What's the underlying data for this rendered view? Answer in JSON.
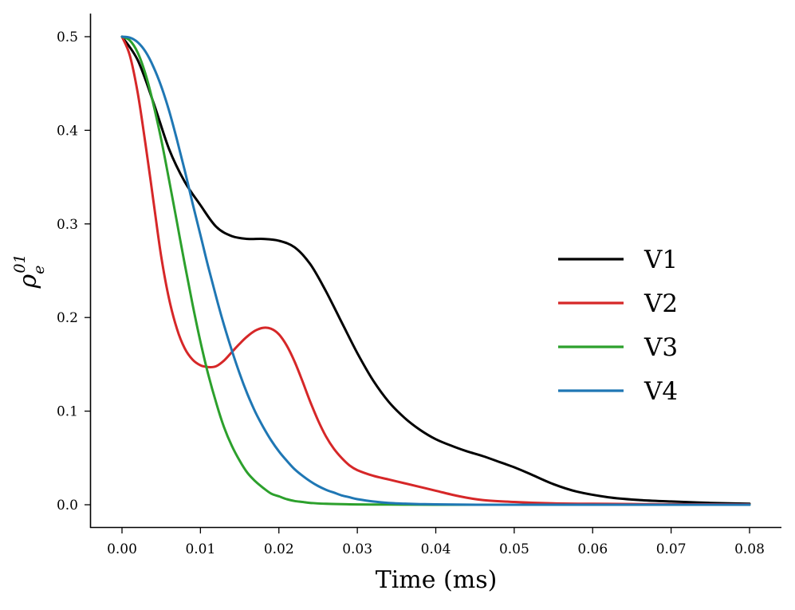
{
  "chart_data": {
    "type": "line",
    "title": "",
    "xlabel": "Time (ms)",
    "ylabel": {
      "base": "ρ",
      "sup": "01",
      "sub": "e"
    },
    "xlim": [
      -0.004,
      0.084
    ],
    "ylim": [
      -0.025,
      0.525
    ],
    "xticks": [
      "0.00",
      "0.01",
      "0.02",
      "0.03",
      "0.04",
      "0.05",
      "0.06",
      "0.07",
      "0.08"
    ],
    "xtick_values": [
      0.0,
      0.01,
      0.02,
      0.03,
      0.04,
      0.05,
      0.06,
      0.07,
      0.08
    ],
    "yticks": [
      "0.0",
      "0.1",
      "0.2",
      "0.3",
      "0.4",
      "0.5"
    ],
    "ytick_values": [
      0.0,
      0.1,
      0.2,
      0.3,
      0.4,
      0.5
    ],
    "grid": false,
    "legend_position": "center-right",
    "series": [
      {
        "name": "V1",
        "color": "#000000",
        "x": [
          0.0,
          0.002,
          0.004,
          0.006,
          0.008,
          0.01,
          0.012,
          0.014,
          0.016,
          0.018,
          0.02,
          0.022,
          0.024,
          0.026,
          0.028,
          0.03,
          0.032,
          0.034,
          0.036,
          0.038,
          0.04,
          0.042,
          0.044,
          0.046,
          0.048,
          0.05,
          0.052,
          0.055,
          0.058,
          0.062,
          0.066,
          0.07,
          0.075,
          0.08
        ],
        "y": [
          0.5,
          0.475,
          0.43,
          0.38,
          0.345,
          0.32,
          0.297,
          0.287,
          0.284,
          0.284,
          0.282,
          0.275,
          0.257,
          0.228,
          0.195,
          0.162,
          0.133,
          0.11,
          0.093,
          0.08,
          0.07,
          0.063,
          0.057,
          0.052,
          0.046,
          0.04,
          0.033,
          0.022,
          0.014,
          0.008,
          0.005,
          0.0035,
          0.002,
          0.001
        ]
      },
      {
        "name": "V2",
        "color": "#d62728",
        "x": [
          0.0,
          0.001,
          0.002,
          0.003,
          0.004,
          0.005,
          0.006,
          0.007,
          0.008,
          0.009,
          0.01,
          0.011,
          0.012,
          0.013,
          0.014,
          0.015,
          0.016,
          0.017,
          0.018,
          0.019,
          0.02,
          0.021,
          0.022,
          0.023,
          0.024,
          0.025,
          0.026,
          0.027,
          0.028,
          0.029,
          0.03,
          0.032,
          0.034,
          0.036,
          0.038,
          0.04,
          0.043,
          0.046,
          0.05,
          0.055,
          0.06,
          0.07,
          0.08
        ],
        "y": [
          0.5,
          0.48,
          0.44,
          0.385,
          0.325,
          0.265,
          0.22,
          0.188,
          0.167,
          0.155,
          0.149,
          0.147,
          0.148,
          0.154,
          0.163,
          0.172,
          0.18,
          0.186,
          0.189,
          0.188,
          0.182,
          0.17,
          0.153,
          0.132,
          0.11,
          0.09,
          0.073,
          0.06,
          0.05,
          0.042,
          0.037,
          0.031,
          0.027,
          0.023,
          0.019,
          0.015,
          0.009,
          0.005,
          0.003,
          0.0015,
          0.001,
          0.0005,
          0.0003
        ]
      },
      {
        "name": "V3",
        "color": "#2ca02c",
        "x": [
          0.0,
          0.001,
          0.002,
          0.003,
          0.004,
          0.005,
          0.006,
          0.007,
          0.008,
          0.009,
          0.01,
          0.011,
          0.012,
          0.013,
          0.014,
          0.015,
          0.016,
          0.017,
          0.018,
          0.019,
          0.02,
          0.021,
          0.022,
          0.023,
          0.024,
          0.026,
          0.028,
          0.03,
          0.033,
          0.036,
          0.04,
          0.05,
          0.06,
          0.08
        ],
        "y": [
          0.5,
          0.496,
          0.483,
          0.46,
          0.428,
          0.39,
          0.347,
          0.302,
          0.257,
          0.214,
          0.174,
          0.139,
          0.109,
          0.083,
          0.063,
          0.047,
          0.034,
          0.025,
          0.018,
          0.012,
          0.009,
          0.006,
          0.004,
          0.003,
          0.002,
          0.001,
          0.0006,
          0.0003,
          0.0002,
          0.0001,
          0.0,
          0.0,
          0.0,
          0.0
        ]
      },
      {
        "name": "V4",
        "color": "#1f77b4",
        "x": [
          0.0,
          0.001,
          0.002,
          0.003,
          0.004,
          0.005,
          0.006,
          0.007,
          0.008,
          0.009,
          0.01,
          0.011,
          0.012,
          0.013,
          0.014,
          0.015,
          0.016,
          0.017,
          0.018,
          0.019,
          0.02,
          0.021,
          0.022,
          0.023,
          0.024,
          0.025,
          0.026,
          0.027,
          0.028,
          0.029,
          0.03,
          0.032,
          0.034,
          0.036,
          0.038,
          0.04,
          0.044,
          0.048,
          0.055,
          0.065,
          0.08
        ],
        "y": [
          0.5,
          0.499,
          0.494,
          0.484,
          0.468,
          0.447,
          0.421,
          0.39,
          0.357,
          0.322,
          0.288,
          0.254,
          0.222,
          0.192,
          0.165,
          0.14,
          0.118,
          0.099,
          0.083,
          0.069,
          0.057,
          0.047,
          0.038,
          0.031,
          0.025,
          0.02,
          0.016,
          0.013,
          0.01,
          0.008,
          0.006,
          0.0035,
          0.002,
          0.0012,
          0.0007,
          0.0004,
          0.0001,
          0.0,
          0.0,
          0.0,
          0.0
        ]
      }
    ]
  }
}
